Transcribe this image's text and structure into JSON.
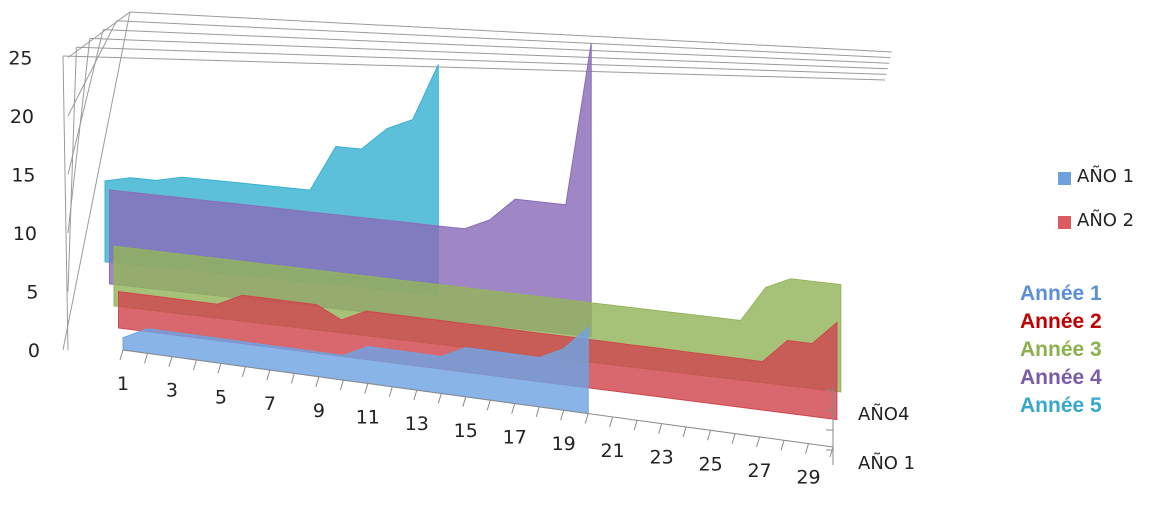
{
  "chart_data": {
    "type": "area",
    "variant": "3d-area",
    "title": "",
    "xlabel": "",
    "ylabel": "",
    "ylim": [
      0,
      25
    ],
    "y_ticks": [
      "0",
      "5",
      "10",
      "15",
      "20",
      "25"
    ],
    "x_tick_labels": [
      "1",
      "3",
      "5",
      "7",
      "9",
      "11",
      "13",
      "15",
      "17",
      "19",
      "21",
      "23",
      "25",
      "27",
      "29"
    ],
    "depth_tick_labels": [
      "AÑO 1",
      "AÑO4"
    ],
    "gridlines": true,
    "legend_position": "right",
    "legend": [
      {
        "name": "AÑO 1",
        "color": "#6f9fdd"
      },
      {
        "name": "AÑO 2",
        "color": "#dc5a62"
      }
    ],
    "series": [
      {
        "name": "Année 5",
        "color": "#38b2d2",
        "start": 1,
        "end": 14,
        "values": [
          7,
          7.5,
          7.5,
          8,
          8,
          8,
          8,
          8,
          8,
          12,
          12,
          14,
          15,
          20
        ]
      },
      {
        "name": "Année 4",
        "color": "#8a6cb8",
        "start": 1,
        "end": 20,
        "values": [
          8,
          8,
          8,
          8,
          8,
          8,
          8,
          8,
          8,
          8,
          8,
          8,
          8,
          8,
          8,
          9,
          11,
          11,
          11,
          25
        ]
      },
      {
        "name": "Année 3",
        "color": "#93b55a",
        "start": 1,
        "end": 30,
        "values": [
          5,
          5,
          5,
          5,
          5,
          5,
          5,
          5,
          5,
          5,
          5,
          5,
          5,
          5,
          5,
          5,
          5,
          5,
          5,
          5,
          5,
          5,
          5,
          5,
          5,
          5,
          8,
          9,
          9,
          9
        ]
      },
      {
        "name": "Année 2",
        "color": "#d0454e",
        "start": 1,
        "end": 30,
        "values": [
          3,
          3,
          3,
          3,
          3,
          4,
          4,
          4,
          4,
          3,
          4,
          4,
          4,
          4,
          4,
          4,
          4,
          4,
          4,
          4,
          4,
          4,
          4,
          4,
          4,
          4,
          4,
          6,
          6,
          8
        ]
      },
      {
        "name": "Année 1",
        "color": "#6ea3e3",
        "start": 1,
        "end": 20,
        "values": [
          1,
          2,
          2,
          2,
          2,
          2,
          2,
          2,
          2,
          2,
          3,
          3,
          3,
          3,
          4,
          4,
          4,
          4,
          5,
          7
        ]
      }
    ]
  },
  "series_labels": [
    {
      "text": "Année 1",
      "color": "#5b8fd8"
    },
    {
      "text": "Année 2",
      "color": "#c00000"
    },
    {
      "text": "Année 3",
      "color": "#8db04e"
    },
    {
      "text": "Année 4",
      "color": "#7a5ba8"
    },
    {
      "text": "Année 5",
      "color": "#35a8cc"
    }
  ]
}
